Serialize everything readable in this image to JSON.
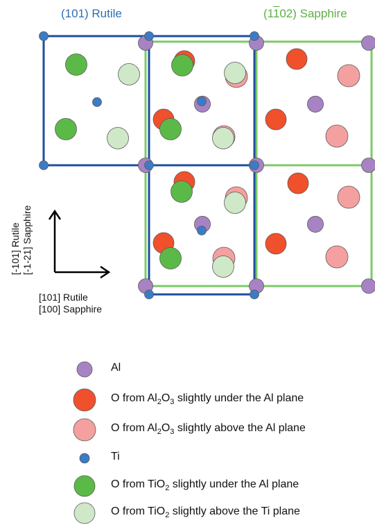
{
  "titles": {
    "left": "(101) Rutile",
    "right": "(1̅0 2) Sapphire"
  },
  "axes": {
    "vertical": [
      "[-101] Rutile",
      "[-1-21] Sapphire"
    ],
    "horizontal": [
      "[101] Rutile",
      "[100] Sapphire"
    ]
  },
  "colors": {
    "rutile_frame": "#1F4E9E",
    "sapphire_frame": "#7CC96A",
    "al": "#A883C4",
    "o_al2o3_under": "#F0502B",
    "o_al2o3_above": "#F5A0A0",
    "ti": "#3C7BC6",
    "o_tio2_under": "#5BBA47",
    "o_tio2_above": "#CFE8C8"
  },
  "legend": [
    {
      "key": "al",
      "text": "Al",
      "sub": "",
      "tail": ""
    },
    {
      "key": "o_al2o3_under",
      "text": "O from Al",
      "sub": "2",
      "mid": "O",
      "sub2": "3",
      "tail": " slightly under the Al plane"
    },
    {
      "key": "o_al2o3_above",
      "text": "O from Al",
      "sub": "2",
      "mid": "O",
      "sub2": "3",
      "tail": " slightly above the Al plane"
    },
    {
      "key": "ti",
      "text": "Ti",
      "sub": "",
      "tail": ""
    },
    {
      "key": "o_tio2_under",
      "text": "O from TiO",
      "sub": "2",
      "mid": "",
      "sub2": "",
      "tail": " slightly under the Al plane"
    },
    {
      "key": "o_tio2_above",
      "text": "O from TiO",
      "sub": "2",
      "mid": "",
      "sub2": "",
      "tail": " slightly above the Ti plane"
    }
  ]
}
